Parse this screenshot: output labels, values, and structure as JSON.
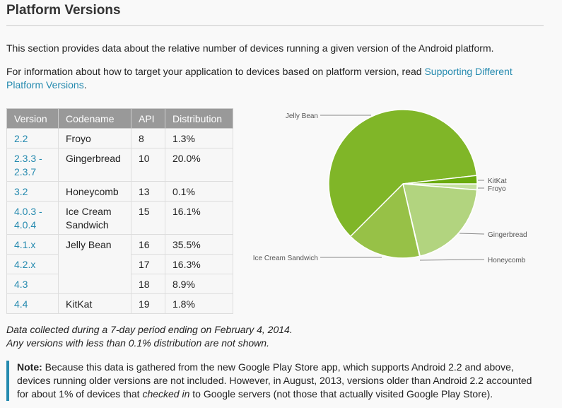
{
  "title": "Platform Versions",
  "intro": "This section provides data about the relative number of devices running a given version of the Android platform.",
  "info_text": "For information about how to target your application to devices based on platform version, read ",
  "info_link": "Supporting Different Platform Versions",
  "info_end": ".",
  "table": {
    "headers": [
      "Version",
      "Codename",
      "API",
      "Distribution"
    ],
    "rows": [
      {
        "version": "2.2",
        "codename": "Froyo",
        "api": "8",
        "dist": "1.3%"
      },
      {
        "version": "2.3.3 - 2.3.7",
        "codename": "Gingerbread",
        "api": "10",
        "dist": "20.0%"
      },
      {
        "version": "3.2",
        "codename": "Honeycomb",
        "api": "13",
        "dist": "0.1%"
      },
      {
        "version": "4.0.3 - 4.0.4",
        "codename": "Ice Cream Sandwich",
        "api": "15",
        "dist": "16.1%"
      },
      {
        "version": "4.1.x",
        "codename": "Jelly Bean",
        "api": "16",
        "dist": "35.5%"
      },
      {
        "version": "4.2.x",
        "codename": "",
        "api": "17",
        "dist": "16.3%"
      },
      {
        "version": "4.3",
        "codename": "",
        "api": "18",
        "dist": "8.9%"
      },
      {
        "version": "4.4",
        "codename": "KitKat",
        "api": "19",
        "dist": "1.8%"
      }
    ]
  },
  "chart_data": {
    "type": "pie",
    "start": "3 o'clock, clockwise",
    "slices": [
      {
        "label": "Froyo",
        "value": 1.3,
        "color": "#c5e0a0"
      },
      {
        "label": "Gingerbread",
        "value": 20.0,
        "color": "#b2d47f"
      },
      {
        "label": "Honeycomb",
        "value": 0.1,
        "color": "#a6cc6a"
      },
      {
        "label": "Ice Cream Sandwich",
        "value": 16.1,
        "color": "#97c147"
      },
      {
        "label": "Jelly Bean",
        "value": 60.7,
        "color": "#80b628"
      },
      {
        "label": "KitKat",
        "value": 1.8,
        "color": "#6aab0e"
      }
    ]
  },
  "footer1": "Data collected during a 7-day period ending on February 4, 2014.",
  "footer2": "Any versions with less than 0.1% distribution are not shown.",
  "note": {
    "label": "Note:",
    "text1": " Because this data is gathered from the new Google Play Store app, which supports Android 2.2 and above, devices running older versions are not included. However, in August, 2013, versions older than Android 2.2 accounted for about 1% of devices that ",
    "em": "checked in",
    "text2": " to Google servers (not those that actually visited Google Play Store)."
  }
}
